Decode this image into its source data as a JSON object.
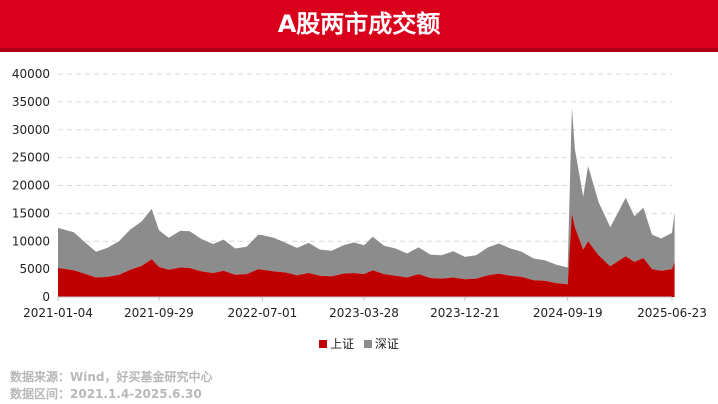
{
  "header": {
    "title": "A股两市成交额"
  },
  "source": {
    "line1": "数据来源：Wind，好买基金研究中心",
    "line2": "数据区间：2021.1.4-2025.6.30"
  },
  "colors": {
    "banner": "#d9001b",
    "shanghai": "#c00000",
    "shenzhen": "#8c8c8c"
  },
  "chart_data": {
    "type": "area",
    "stacked": true,
    "title": "A股两市成交额",
    "y_ticks": [
      "0",
      "5000",
      "10000",
      "15000",
      "20000",
      "25000",
      "30000",
      "35000",
      "40000"
    ],
    "x_ticks": [
      "2021-01-04",
      "2021-09-29",
      "2022-07-01",
      "2023-03-28",
      "2023-12-21",
      "2024-09-19",
      "2025-06-23"
    ],
    "ylim": [
      0,
      40000
    ],
    "grid": true,
    "legend_position": "bottom",
    "series": [
      {
        "name": "上证",
        "color": "#c00000",
        "points": [
          [
            "2021-01-04",
            5200
          ],
          [
            "2021-02-15",
            4800
          ],
          [
            "2021-03-15",
            4200
          ],
          [
            "2021-04-15",
            3500
          ],
          [
            "2021-05-15",
            3600
          ],
          [
            "2021-06-15",
            4000
          ],
          [
            "2021-07-15",
            4900
          ],
          [
            "2021-08-15",
            5600
          ],
          [
            "2021-09-10",
            6800
          ],
          [
            "2021-09-29",
            5400
          ],
          [
            "2021-10-25",
            4900
          ],
          [
            "2021-11-25",
            5300
          ],
          [
            "2021-12-20",
            5200
          ],
          [
            "2022-01-20",
            4600
          ],
          [
            "2022-02-20",
            4300
          ],
          [
            "2022-03-20",
            4700
          ],
          [
            "2022-04-20",
            4000
          ],
          [
            "2022-05-20",
            4100
          ],
          [
            "2022-06-20",
            5000
          ],
          [
            "2022-07-01",
            4900
          ],
          [
            "2022-08-01",
            4600
          ],
          [
            "2022-09-01",
            4400
          ],
          [
            "2022-10-01",
            3900
          ],
          [
            "2022-11-01",
            4300
          ],
          [
            "2022-12-01",
            3800
          ],
          [
            "2023-01-01",
            3700
          ],
          [
            "2023-02-01",
            4200
          ],
          [
            "2023-03-01",
            4300
          ],
          [
            "2023-03-28",
            4100
          ],
          [
            "2023-04-20",
            4800
          ],
          [
            "2023-05-20",
            4100
          ],
          [
            "2023-06-20",
            3800
          ],
          [
            "2023-07-20",
            3500
          ],
          [
            "2023-08-20",
            4100
          ],
          [
            "2023-09-20",
            3400
          ],
          [
            "2023-10-20",
            3300
          ],
          [
            "2023-11-20",
            3500
          ],
          [
            "2023-12-21",
            3200
          ],
          [
            "2024-01-20",
            3300
          ],
          [
            "2024-02-20",
            3900
          ],
          [
            "2024-03-20",
            4200
          ],
          [
            "2024-04-20",
            3800
          ],
          [
            "2024-05-20",
            3600
          ],
          [
            "2024-06-20",
            3000
          ],
          [
            "2024-07-20",
            2900
          ],
          [
            "2024-08-20",
            2500
          ],
          [
            "2024-09-19",
            2300
          ],
          [
            "2024-09-30",
            15000
          ],
          [
            "2024-10-08",
            12500
          ],
          [
            "2024-10-30",
            8500
          ],
          [
            "2024-11-12",
            10000
          ],
          [
            "2024-12-10",
            7500
          ],
          [
            "2025-01-10",
            5500
          ],
          [
            "2025-02-20",
            7300
          ],
          [
            "2025-03-15",
            6300
          ],
          [
            "2025-04-08",
            7000
          ],
          [
            "2025-05-01",
            5000
          ],
          [
            "2025-05-25",
            4700
          ],
          [
            "2025-06-23",
            5000
          ],
          [
            "2025-06-30",
            6300
          ]
        ]
      },
      {
        "name": "深证",
        "color": "#8c8c8c",
        "points": [
          [
            "2021-01-04",
            7200
          ],
          [
            "2021-02-15",
            6800
          ],
          [
            "2021-03-15",
            5700
          ],
          [
            "2021-04-15",
            4600
          ],
          [
            "2021-05-15",
            5200
          ],
          [
            "2021-06-15",
            6000
          ],
          [
            "2021-07-15",
            7200
          ],
          [
            "2021-08-15",
            8000
          ],
          [
            "2021-09-10",
            9000
          ],
          [
            "2021-09-29",
            6600
          ],
          [
            "2021-10-25",
            5700
          ],
          [
            "2021-11-25",
            6600
          ],
          [
            "2021-12-20",
            6600
          ],
          [
            "2022-01-20",
            5800
          ],
          [
            "2022-02-20",
            5200
          ],
          [
            "2022-03-20",
            5600
          ],
          [
            "2022-04-20",
            4700
          ],
          [
            "2022-05-20",
            4900
          ],
          [
            "2022-06-20",
            6200
          ],
          [
            "2022-07-01",
            6200
          ],
          [
            "2022-08-01",
            6000
          ],
          [
            "2022-09-01",
            5300
          ],
          [
            "2022-10-01",
            4900
          ],
          [
            "2022-11-01",
            5400
          ],
          [
            "2022-12-01",
            4700
          ],
          [
            "2023-01-01",
            4600
          ],
          [
            "2023-02-01",
            5100
          ],
          [
            "2023-03-01",
            5500
          ],
          [
            "2023-03-28",
            5200
          ],
          [
            "2023-04-20",
            6000
          ],
          [
            "2023-05-20",
            5100
          ],
          [
            "2023-06-20",
            4900
          ],
          [
            "2023-07-20",
            4300
          ],
          [
            "2023-08-20",
            4800
          ],
          [
            "2023-09-20",
            4200
          ],
          [
            "2023-10-20",
            4200
          ],
          [
            "2023-11-20",
            4700
          ],
          [
            "2023-12-21",
            4000
          ],
          [
            "2024-01-20",
            4200
          ],
          [
            "2024-02-20",
            5000
          ],
          [
            "2024-03-20",
            5400
          ],
          [
            "2024-04-20",
            4900
          ],
          [
            "2024-05-20",
            4500
          ],
          [
            "2024-06-20",
            3900
          ],
          [
            "2024-07-20",
            3700
          ],
          [
            "2024-08-20",
            3300
          ],
          [
            "2024-09-19",
            3000
          ],
          [
            "2024-09-30",
            19000
          ],
          [
            "2024-10-08",
            14000
          ],
          [
            "2024-10-30",
            9500
          ],
          [
            "2024-11-12",
            13500
          ],
          [
            "2024-12-10",
            9500
          ],
          [
            "2025-01-10",
            7000
          ],
          [
            "2025-02-20",
            10500
          ],
          [
            "2025-03-15",
            8200
          ],
          [
            "2025-04-08",
            9000
          ],
          [
            "2025-05-01",
            6200
          ],
          [
            "2025-05-25",
            5800
          ],
          [
            "2025-06-23",
            6500
          ],
          [
            "2025-06-30",
            9000
          ]
        ]
      }
    ]
  }
}
